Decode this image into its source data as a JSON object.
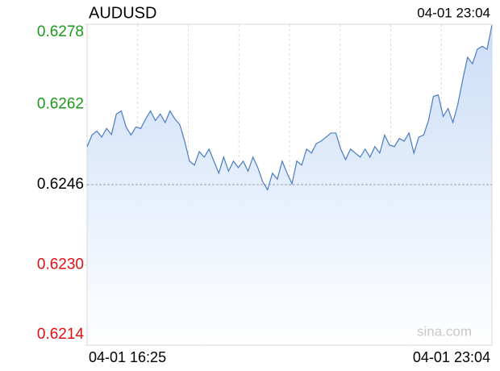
{
  "chart_data": {
    "type": "line",
    "title": "AUDUSD",
    "timestamp": "04-01 23:04",
    "watermark": "sina.com",
    "categories": [
      "04-01 16:25",
      null,
      null,
      null,
      null,
      null,
      null,
      null,
      null,
      null,
      null,
      null,
      null,
      null,
      null,
      null,
      null,
      null,
      null,
      null,
      null,
      null,
      null,
      null,
      null,
      null,
      null,
      null,
      null,
      null,
      null,
      null,
      null,
      null,
      null,
      null,
      null,
      null,
      null,
      null,
      null,
      null,
      null,
      null,
      null,
      null,
      null,
      null,
      null,
      null,
      null,
      null,
      null,
      null,
      null,
      null,
      null,
      null,
      null,
      null,
      null,
      null,
      null,
      null,
      null,
      null,
      null,
      null,
      null,
      null,
      null,
      null,
      null,
      null,
      null,
      null,
      null,
      null,
      null,
      null,
      null,
      null,
      null,
      "04-01 23:04"
    ],
    "series": [
      {
        "name": "AUDUSD",
        "color": "#4a7cc0",
        "values": [
          0.62536,
          0.62559,
          0.62567,
          0.62555,
          0.62572,
          0.6256,
          0.62601,
          0.62607,
          0.62575,
          0.62559,
          0.62575,
          0.62572,
          0.62591,
          0.62607,
          0.62588,
          0.62601,
          0.62584,
          0.62607,
          0.62591,
          0.6258,
          0.62547,
          0.62507,
          0.62499,
          0.62526,
          0.62515,
          0.62531,
          0.62507,
          0.62483,
          0.62515,
          0.62487,
          0.62507,
          0.62494,
          0.62507,
          0.62487,
          0.62515,
          0.62494,
          0.62466,
          0.6245,
          0.62483,
          0.62471,
          0.62507,
          0.62483,
          0.62462,
          0.62507,
          0.62499,
          0.62531,
          0.62523,
          0.62542,
          0.62547,
          0.62555,
          0.62563,
          0.62563,
          0.62531,
          0.6251,
          0.62531,
          0.62523,
          0.62515,
          0.62531,
          0.62515,
          0.62536,
          0.62523,
          0.62559,
          0.62539,
          0.62536,
          0.62552,
          0.62547,
          0.62563,
          0.62523,
          0.62555,
          0.62559,
          0.62588,
          0.62636,
          0.62639,
          0.62596,
          0.62612,
          0.62584,
          0.6262,
          0.62669,
          0.62714,
          0.62701,
          0.6273,
          0.62736,
          0.6273,
          0.62778
        ]
      }
    ],
    "reference_line": 0.6246,
    "ylim": [
      0.6214,
      0.6278
    ],
    "yticks": [
      0.6278,
      0.6262,
      0.6246,
      {
        "value": 0.623,
        "label": "0.6230"
      },
      0.6214
    ],
    "up_color": "#1a9a1a",
    "down_color": "#e01010",
    "flat_color": "#000000",
    "fill_color": "#c9dcf7",
    "grid": true
  }
}
